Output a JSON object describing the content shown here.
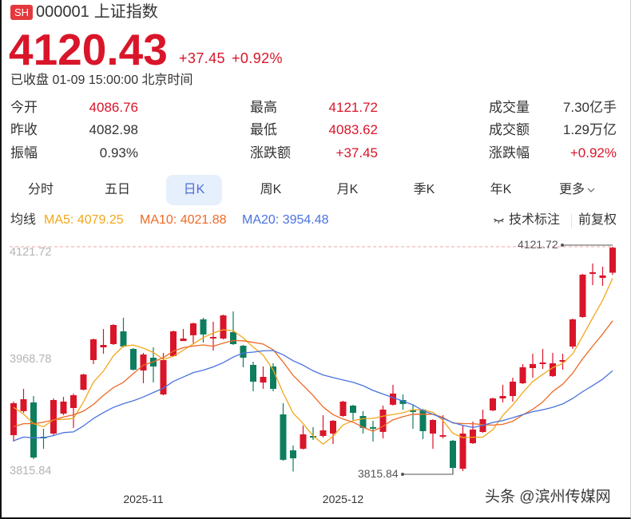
{
  "header": {
    "market_badge": "SH",
    "code": "000001",
    "name": "上证指数",
    "price": "4120.43",
    "change": "+37.45",
    "change_pct": "+0.92%",
    "status": "已收盘 01-09 15:00:00 北京时间"
  },
  "stats": {
    "rows": [
      [
        {
          "label": "今开",
          "value": "4086.76",
          "tone": "up"
        },
        {
          "label": "最高",
          "value": "4121.72",
          "tone": "up"
        },
        {
          "label": "成交量",
          "value": "7.30亿手",
          "tone": "flat"
        }
      ],
      [
        {
          "label": "昨收",
          "value": "4082.98",
          "tone": "flat"
        },
        {
          "label": "最低",
          "value": "4083.62",
          "tone": "up"
        },
        {
          "label": "成交额",
          "value": "1.29万亿",
          "tone": "flat"
        }
      ],
      [
        {
          "label": "振幅",
          "value": "0.93%",
          "tone": "flat"
        },
        {
          "label": "涨跌额",
          "value": "+37.45",
          "tone": "up"
        },
        {
          "label": "涨跌幅",
          "value": "+0.92%",
          "tone": "up"
        }
      ]
    ]
  },
  "tabs": [
    {
      "label": "分时",
      "active": false
    },
    {
      "label": "五日",
      "active": false
    },
    {
      "label": "日K",
      "active": true
    },
    {
      "label": "周K",
      "active": false
    },
    {
      "label": "月K",
      "active": false
    },
    {
      "label": "季K",
      "active": false
    },
    {
      "label": "年K",
      "active": false
    },
    {
      "label": "更多",
      "active": false,
      "icon": "chevron-down-icon"
    }
  ],
  "indicator_bar": {
    "label": "均线",
    "ma5": "MA5: 4079.25",
    "ma10": "MA10: 4021.88",
    "ma20": "MA20: 3954.48",
    "tech_annotation": "技术标注",
    "tech_annotation_icon": "eye-closed-icon",
    "adjust": "前复权"
  },
  "colors": {
    "up": "#d9152a",
    "down": "#0e7d5e",
    "ma5": "#f2a71b",
    "ma10": "#ee6a25",
    "ma20": "#4a72e0",
    "high_line": "#f2a3ab",
    "marker": "#555555",
    "tab_active_bg": "#e6effc",
    "tab_active_fg": "#4d6fd6"
  },
  "watermark": "头条 @滨州传媒网",
  "chart_data": {
    "type": "candlestick",
    "title": "000001 上证指数 日K",
    "period": "日K",
    "adjustment": "前复权",
    "grid": false,
    "y_axis": {
      "max": 4121.72,
      "min": 3815.84,
      "ticks": [
        "4121.72",
        "3968.78",
        "3815.84"
      ]
    },
    "x_axis": {
      "ticks": [
        {
          "label": "2025-11",
          "index": 13
        },
        {
          "label": "2025-12",
          "index": 33
        }
      ]
    },
    "markers": {
      "high": {
        "label": "4121.72",
        "index": 60,
        "value": 4121.72
      },
      "low": {
        "label": "3815.84",
        "index": 44,
        "value": 3815.84
      }
    },
    "fields": [
      "open",
      "high",
      "low",
      "close"
    ],
    "candles": [
      [
        3867.5,
        3912.8,
        3858.9,
        3910.6
      ],
      [
        3899.9,
        3930.0,
        3897.7,
        3916.0
      ],
      [
        3911.7,
        3920.3,
        3835.2,
        3837.4
      ],
      [
        3865.4,
        3876.2,
        3849.2,
        3863.2
      ],
      [
        3869.7,
        3917.1,
        3867.5,
        3914.9
      ],
      [
        3896.6,
        3919.2,
        3894.5,
        3912.8
      ],
      [
        3904.2,
        3923.6,
        3877.3,
        3921.4
      ],
      [
        3928.9,
        3950.5,
        3927.8,
        3949.4
      ],
      [
        3968.8,
        3997.9,
        3963.4,
        3996.8
      ],
      [
        3986.0,
        4010.8,
        3977.4,
        3989.2
      ],
      [
        3990.3,
        4017.2,
        3989.2,
        4016.2
      ],
      [
        4007.6,
        4025.9,
        3986.0,
        3987.1
      ],
      [
        3983.9,
        3985.0,
        3954.8,
        3955.9
      ],
      [
        3954.8,
        3978.5,
        3937.6,
        3976.3
      ],
      [
        3972.0,
        3986.0,
        3938.6,
        3960.2
      ],
      [
        3922.5,
        3978.5,
        3921.4,
        3968.8
      ],
      [
        3974.2,
        4008.6,
        3973.1,
        4007.6
      ],
      [
        3994.6,
        4010.8,
        3994.6,
        3997.9
      ],
      [
        4002.2,
        4019.4,
        3991.4,
        4018.3
      ],
      [
        4023.7,
        4025.9,
        3992.5,
        4003.3
      ],
      [
        3997.9,
        4020.5,
        3981.7,
        4000.0
      ],
      [
        3997.9,
        4030.2,
        3996.8,
        4029.1
      ],
      [
        4006.5,
        4034.5,
        3989.2,
        3990.3
      ],
      [
        3988.2,
        3989.2,
        3959.1,
        3972.0
      ],
      [
        3962.3,
        3966.6,
        3926.8,
        3939.7
      ],
      [
        3938.6,
        3960.2,
        3930.0,
        3946.2
      ],
      [
        3960.2,
        3964.5,
        3926.8,
        3930.0
      ],
      [
        3895.5,
        3910.6,
        3833.1,
        3834.2
      ],
      [
        3847.1,
        3853.5,
        3818.5,
        3836.3
      ],
      [
        3849.2,
        3880.5,
        3848.1,
        3868.6
      ],
      [
        3866.5,
        3878.3,
        3861.1,
        3864.3
      ],
      [
        3866.5,
        3894.5,
        3864.3,
        3874.0
      ],
      [
        3869.7,
        3888.0,
        3855.7,
        3886.9
      ],
      [
        3893.4,
        3913.9,
        3892.3,
        3912.8
      ],
      [
        3907.4,
        3908.5,
        3888.0,
        3897.7
      ],
      [
        3893.4,
        3899.9,
        3869.7,
        3877.3
      ],
      [
        3878.3,
        3886.9,
        3858.9,
        3876.2
      ],
      [
        3871.9,
        3907.4,
        3863.2,
        3902.0
      ],
      [
        3908.5,
        3935.4,
        3907.4,
        3923.6
      ],
      [
        3914.9,
        3922.5,
        3902.0,
        3909.6
      ],
      [
        3900.9,
        3908.5,
        3876.2,
        3898.8
      ],
      [
        3902.0,
        3903.1,
        3862.2,
        3872.9
      ],
      [
        3869.7,
        3889.1,
        3849.2,
        3888.0
      ],
      [
        3865.4,
        3894.5,
        3863.2,
        3867.5
      ],
      [
        3860.0,
        3861.1,
        3815.84,
        3823.4
      ],
      [
        3822.3,
        3880.5,
        3819.1,
        3869.7
      ],
      [
        3856.7,
        3885.9,
        3855.7,
        3875.1
      ],
      [
        3871.9,
        3902.0,
        3870.8,
        3889.1
      ],
      [
        3900.9,
        3918.2,
        3899.9,
        3917.1
      ],
      [
        3917.1,
        3935.4,
        3911.7,
        3920.3
      ],
      [
        3920.3,
        3945.1,
        3912.8,
        3939.7
      ],
      [
        3937.6,
        3963.4,
        3936.5,
        3959.1
      ],
      [
        3958.0,
        3977.4,
        3945.1,
        3963.4
      ],
      [
        3963.4,
        3983.9,
        3956.9,
        3965.6
      ],
      [
        3947.2,
        3978.5,
        3946.2,
        3964.5
      ],
      [
        3966.6,
        3977.4,
        3955.9,
        3968.8
      ],
      [
        3987.1,
        4024.8,
        3983.9,
        4023.7
      ],
      [
        4026.9,
        4085.1,
        4025.9,
        4084.0
      ],
      [
        4085.1,
        4099.1,
        4070.0,
        4087.3
      ],
      [
        4079.7,
        4094.8,
        4068.9,
        4082.98
      ],
      [
        4086.76,
        4121.72,
        4083.62,
        4120.43
      ]
    ],
    "series": [
      {
        "key": "ma5",
        "name": "MA5",
        "last": 4079.25,
        "values": [
          3905,
          3896,
          3883,
          3879,
          3888.4,
          3888.9,
          3889.9,
          3912.3,
          3939.1,
          3953.9,
          3974.6,
          3987.7,
          3989.0,
          3984.9,
          3979.1,
          3969.7,
          3973.8,
          3982.2,
          3990.6,
          3999.2,
          4005.4,
          4009.7,
          4008.2,
          3998.9,
          3986.2,
          3975.5,
          3955.6,
          3924.4,
          3897.3,
          3883.1,
          3866.7,
          3855.5,
          3866.0,
          3881.3,
          3887.1,
          3889.7,
          3890.2,
          3893.2,
          3895.4,
          3897.7,
          3902.0,
          3901.4,
          3898.6,
          3887.4,
          3870.1,
          3864.3,
          3864.7,
          3865.0,
          3874.9,
          3894.3,
          3908.3,
          3925.1,
          3939.9,
          3949.6,
          3958.5,
          3964.3,
          3977.2,
          4001.3,
          4025.7,
          4049.3,
          4079.25
        ]
      },
      {
        "key": "ma10",
        "name": "MA10",
        "last": 4021.88,
        "values": [
          3879,
          3883,
          3883,
          3885,
          3888,
          3892,
          3895,
          3900,
          3909,
          3921.2,
          3931.7,
          3938.8,
          3950.7,
          3962.0,
          3966.5,
          3972.1,
          3980.8,
          3985.6,
          3987.8,
          3989.2,
          3987.5,
          3991.7,
          3995.2,
          3994.8,
          3992.7,
          3990.4,
          3982.7,
          3966.3,
          3948.1,
          3934.6,
          3921.1,
          3905.6,
          3895.2,
          3889.3,
          3885.1,
          3878.2,
          3872.8,
          3879.6,
          3888.3,
          3892.4,
          3895.9,
          3895.8,
          3895.9,
          3891.4,
          3883.9,
          3883.2,
          3883.1,
          3881.8,
          3881.1,
          3882.2,
          3886.3,
          3894.9,
          3902.4,
          3912.3,
          3926.4,
          3936.3,
          3951.1,
          3970.6,
          3987.6,
          4003.9,
          4021.88
        ]
      },
      {
        "key": "ma20",
        "name": "MA20",
        "last": 3954.48,
        "values": [
          3860,
          3865,
          3864,
          3864,
          3867,
          3871,
          3872,
          3880,
          3890,
          3898,
          3905,
          3910,
          3914,
          3919,
          3925,
          3931,
          3940,
          3946,
          3952,
          3955.2,
          3959.6,
          3965.3,
          3972.9,
          3978.4,
          3979.6,
          3981.3,
          3981.7,
          3976.0,
          3967.9,
          3961.9,
          3954.3,
          3948.7,
          3945.2,
          3942.0,
          3938.9,
          3934.3,
          3927.8,
          3923.0,
          3918.2,
          3913.5,
          3908.5,
          3900.7,
          3895.6,
          3890.3,
          3884.5,
          3880.7,
          3877.9,
          3880.7,
          3884.7,
          3887.3,
          3891.1,
          3895.3,
          3899.2,
          3901.8,
          3905.1,
          3909.7,
          3917.1,
          3926.2,
          3934.4,
          3943.0,
          3954.48
        ]
      }
    ]
  }
}
